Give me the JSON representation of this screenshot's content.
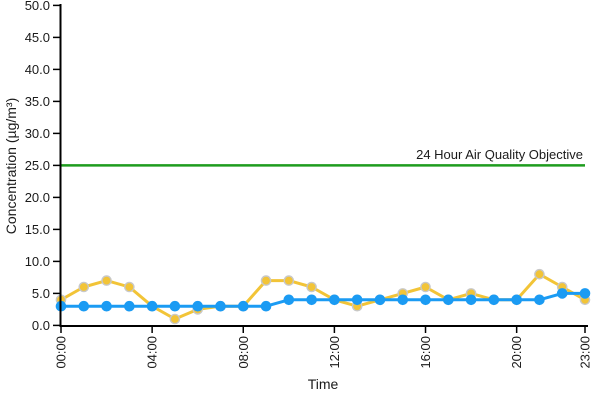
{
  "figure": {
    "y_axis": {
      "title": "Concentration (µg/m³)",
      "tick_labels": [
        "0.0",
        "5.0",
        "10.0",
        "15.0",
        "20.0",
        "25.0",
        "30.0",
        "35.0",
        "40.0",
        "45.0",
        "50.0"
      ],
      "tick_values": [
        0,
        5,
        10,
        15,
        20,
        25,
        30,
        35,
        40,
        45,
        50
      ]
    },
    "x_axis": {
      "title": "Time",
      "tick_labels": [
        "00:00",
        "04:00",
        "08:00",
        "12:00",
        "16:00",
        "20:00",
        "23:00"
      ],
      "tick_hours": [
        0,
        4,
        8,
        12,
        16,
        20,
        23
      ]
    },
    "annotation_label": "24 Hour Air Quality Objective"
  },
  "chart_data": {
    "type": "line",
    "title": "",
    "xlabel": "Time",
    "ylabel": "Concentration (µg/m³)",
    "ylim": [
      0,
      50
    ],
    "xlim_hours": [
      0,
      23
    ],
    "grid": false,
    "legend": "none",
    "x_hours": [
      0,
      1,
      2,
      3,
      4,
      5,
      6,
      7,
      8,
      9,
      10,
      11,
      12,
      13,
      14,
      15,
      16,
      17,
      18,
      19,
      20,
      21,
      22,
      23
    ],
    "series": [
      {
        "name": "yellow-series",
        "color": "#F2C437",
        "marker_border": "#C8C8C8",
        "values": [
          4,
          6,
          7,
          6,
          3,
          1,
          2.5,
          3,
          3,
          7,
          7,
          6,
          4,
          3,
          4,
          5,
          6,
          4,
          5,
          4,
          4,
          8,
          6,
          4
        ]
      },
      {
        "name": "blue-series",
        "color": "#1B9BF3",
        "marker_border": "#1B9BF3",
        "values": [
          3,
          3,
          3,
          3,
          3,
          3,
          3,
          3,
          3,
          3,
          4,
          4,
          4,
          4,
          4,
          4,
          4,
          4,
          4,
          4,
          4,
          4,
          5,
          5
        ]
      }
    ],
    "reference_line": {
      "value": 25,
      "label": "24 Hour Air Quality Objective",
      "color": "#1E9C1E"
    }
  }
}
